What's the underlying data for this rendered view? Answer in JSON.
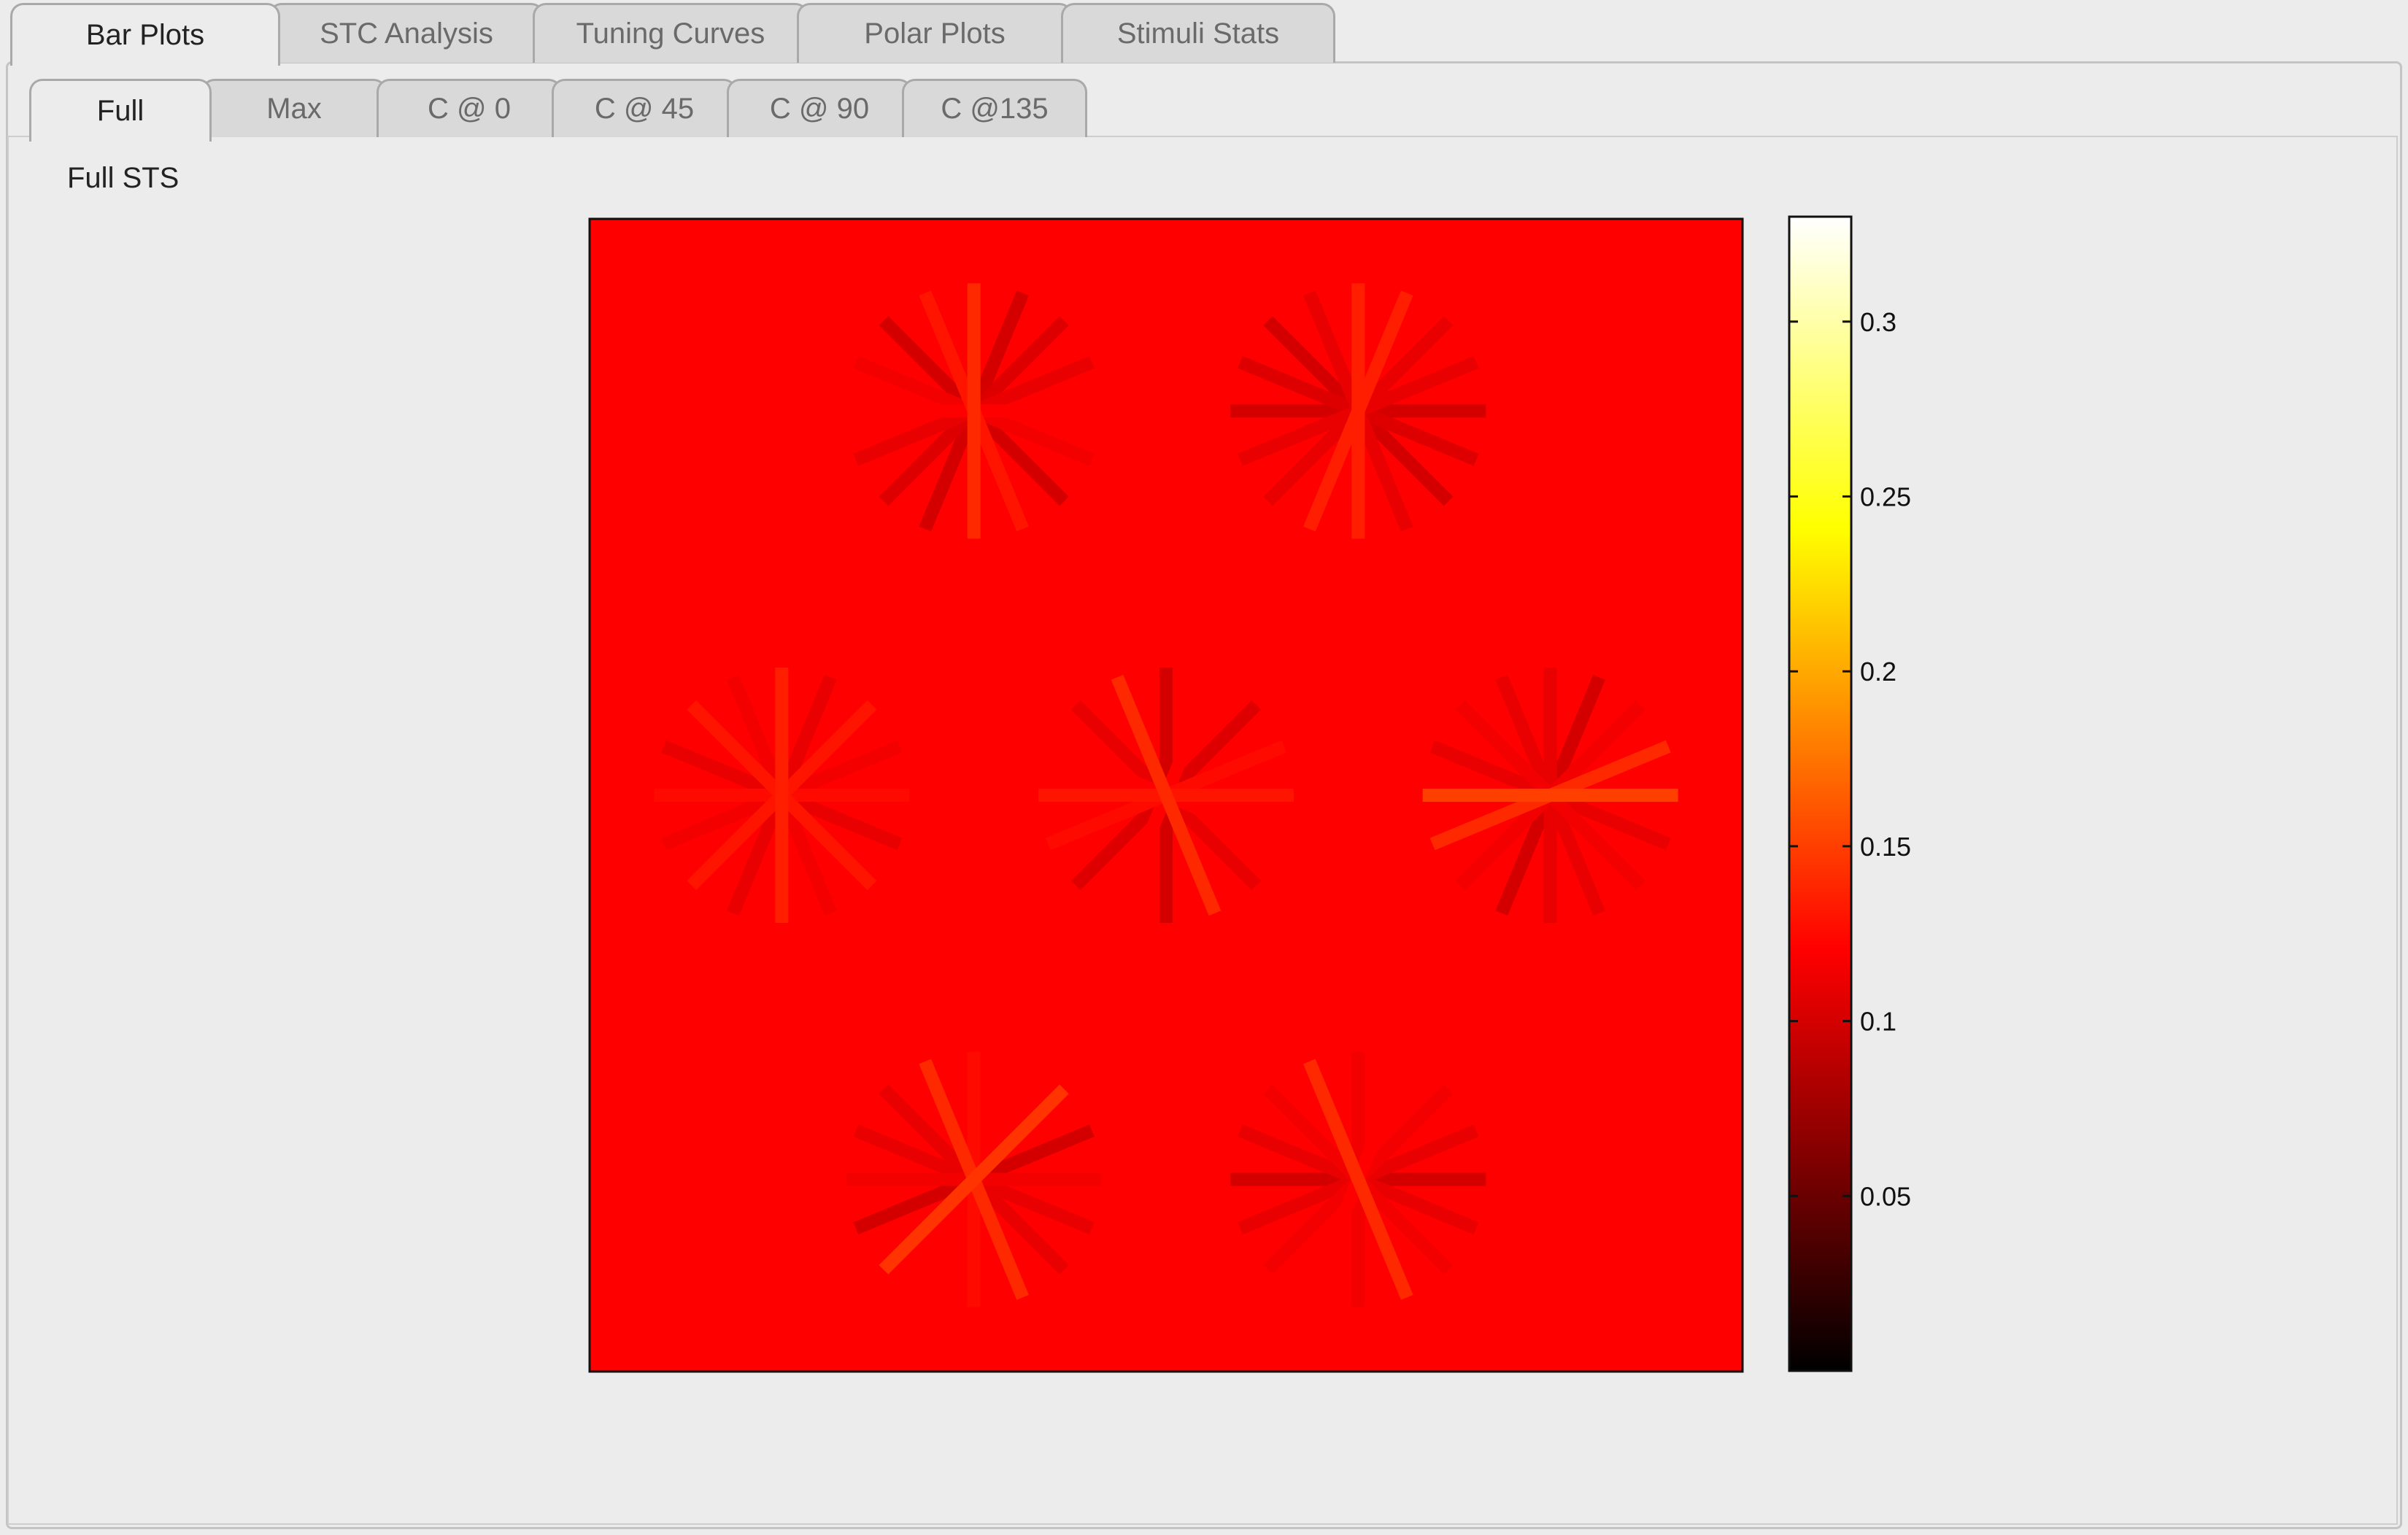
{
  "top_tabs": [
    {
      "label": "Bar Plots",
      "active": true
    },
    {
      "label": "STC Analysis",
      "active": false
    },
    {
      "label": "Tuning Curves",
      "active": false
    },
    {
      "label": "Polar Plots",
      "active": false
    },
    {
      "label": "Stimuli Stats",
      "active": false
    }
  ],
  "sub_tabs": [
    {
      "label": "Full",
      "active": true
    },
    {
      "label": "Max",
      "active": false
    },
    {
      "label": "C @ 0",
      "active": false
    },
    {
      "label": "C @ 45",
      "active": false
    },
    {
      "label": "C @ 90",
      "active": false
    },
    {
      "label": "C @135",
      "active": false
    }
  ],
  "panel": {
    "title": "Full STS"
  },
  "colormap": "hot",
  "colorbar": {
    "min": 0.0,
    "max": 0.33,
    "ticks": [
      0.05,
      0.1,
      0.15,
      0.2,
      0.25,
      0.3
    ],
    "tick_labels": [
      "0.05",
      "0.1",
      "0.15",
      "0.2",
      "0.25",
      "0.3"
    ]
  },
  "plot": {
    "background_value": 0.12,
    "orientations_deg": [
      0,
      22.5,
      45,
      67.5,
      90,
      112.5,
      135,
      157.5
    ],
    "rosettes": [
      {
        "row": 0,
        "col": 0.5,
        "values": [
          0.12,
          0.11,
          0.105,
          0.1,
          0.14,
          0.13,
          0.1,
          0.115
        ]
      },
      {
        "row": 0,
        "col": 1.5,
        "values": [
          0.1,
          0.11,
          0.11,
          0.135,
          0.135,
          0.11,
          0.1,
          0.105
        ]
      },
      {
        "row": 1,
        "col": 0,
        "values": [
          0.125,
          0.115,
          0.13,
          0.11,
          0.135,
          0.115,
          0.13,
          0.11
        ]
      },
      {
        "row": 1,
        "col": 1,
        "values": [
          0.13,
          0.125,
          0.105,
          0.12,
          0.1,
          0.14,
          0.11,
          0.12
        ]
      },
      {
        "row": 1,
        "col": 2,
        "values": [
          0.15,
          0.14,
          0.115,
          0.1,
          0.11,
          0.11,
          0.115,
          0.11
        ]
      },
      {
        "row": 2,
        "col": 0.5,
        "values": [
          0.115,
          0.1,
          0.145,
          0.12,
          0.125,
          0.14,
          0.11,
          0.11
        ]
      },
      {
        "row": 2,
        "col": 1.5,
        "values": [
          0.1,
          0.11,
          0.115,
          0.12,
          0.115,
          0.14,
          0.115,
          0.11
        ]
      }
    ]
  }
}
